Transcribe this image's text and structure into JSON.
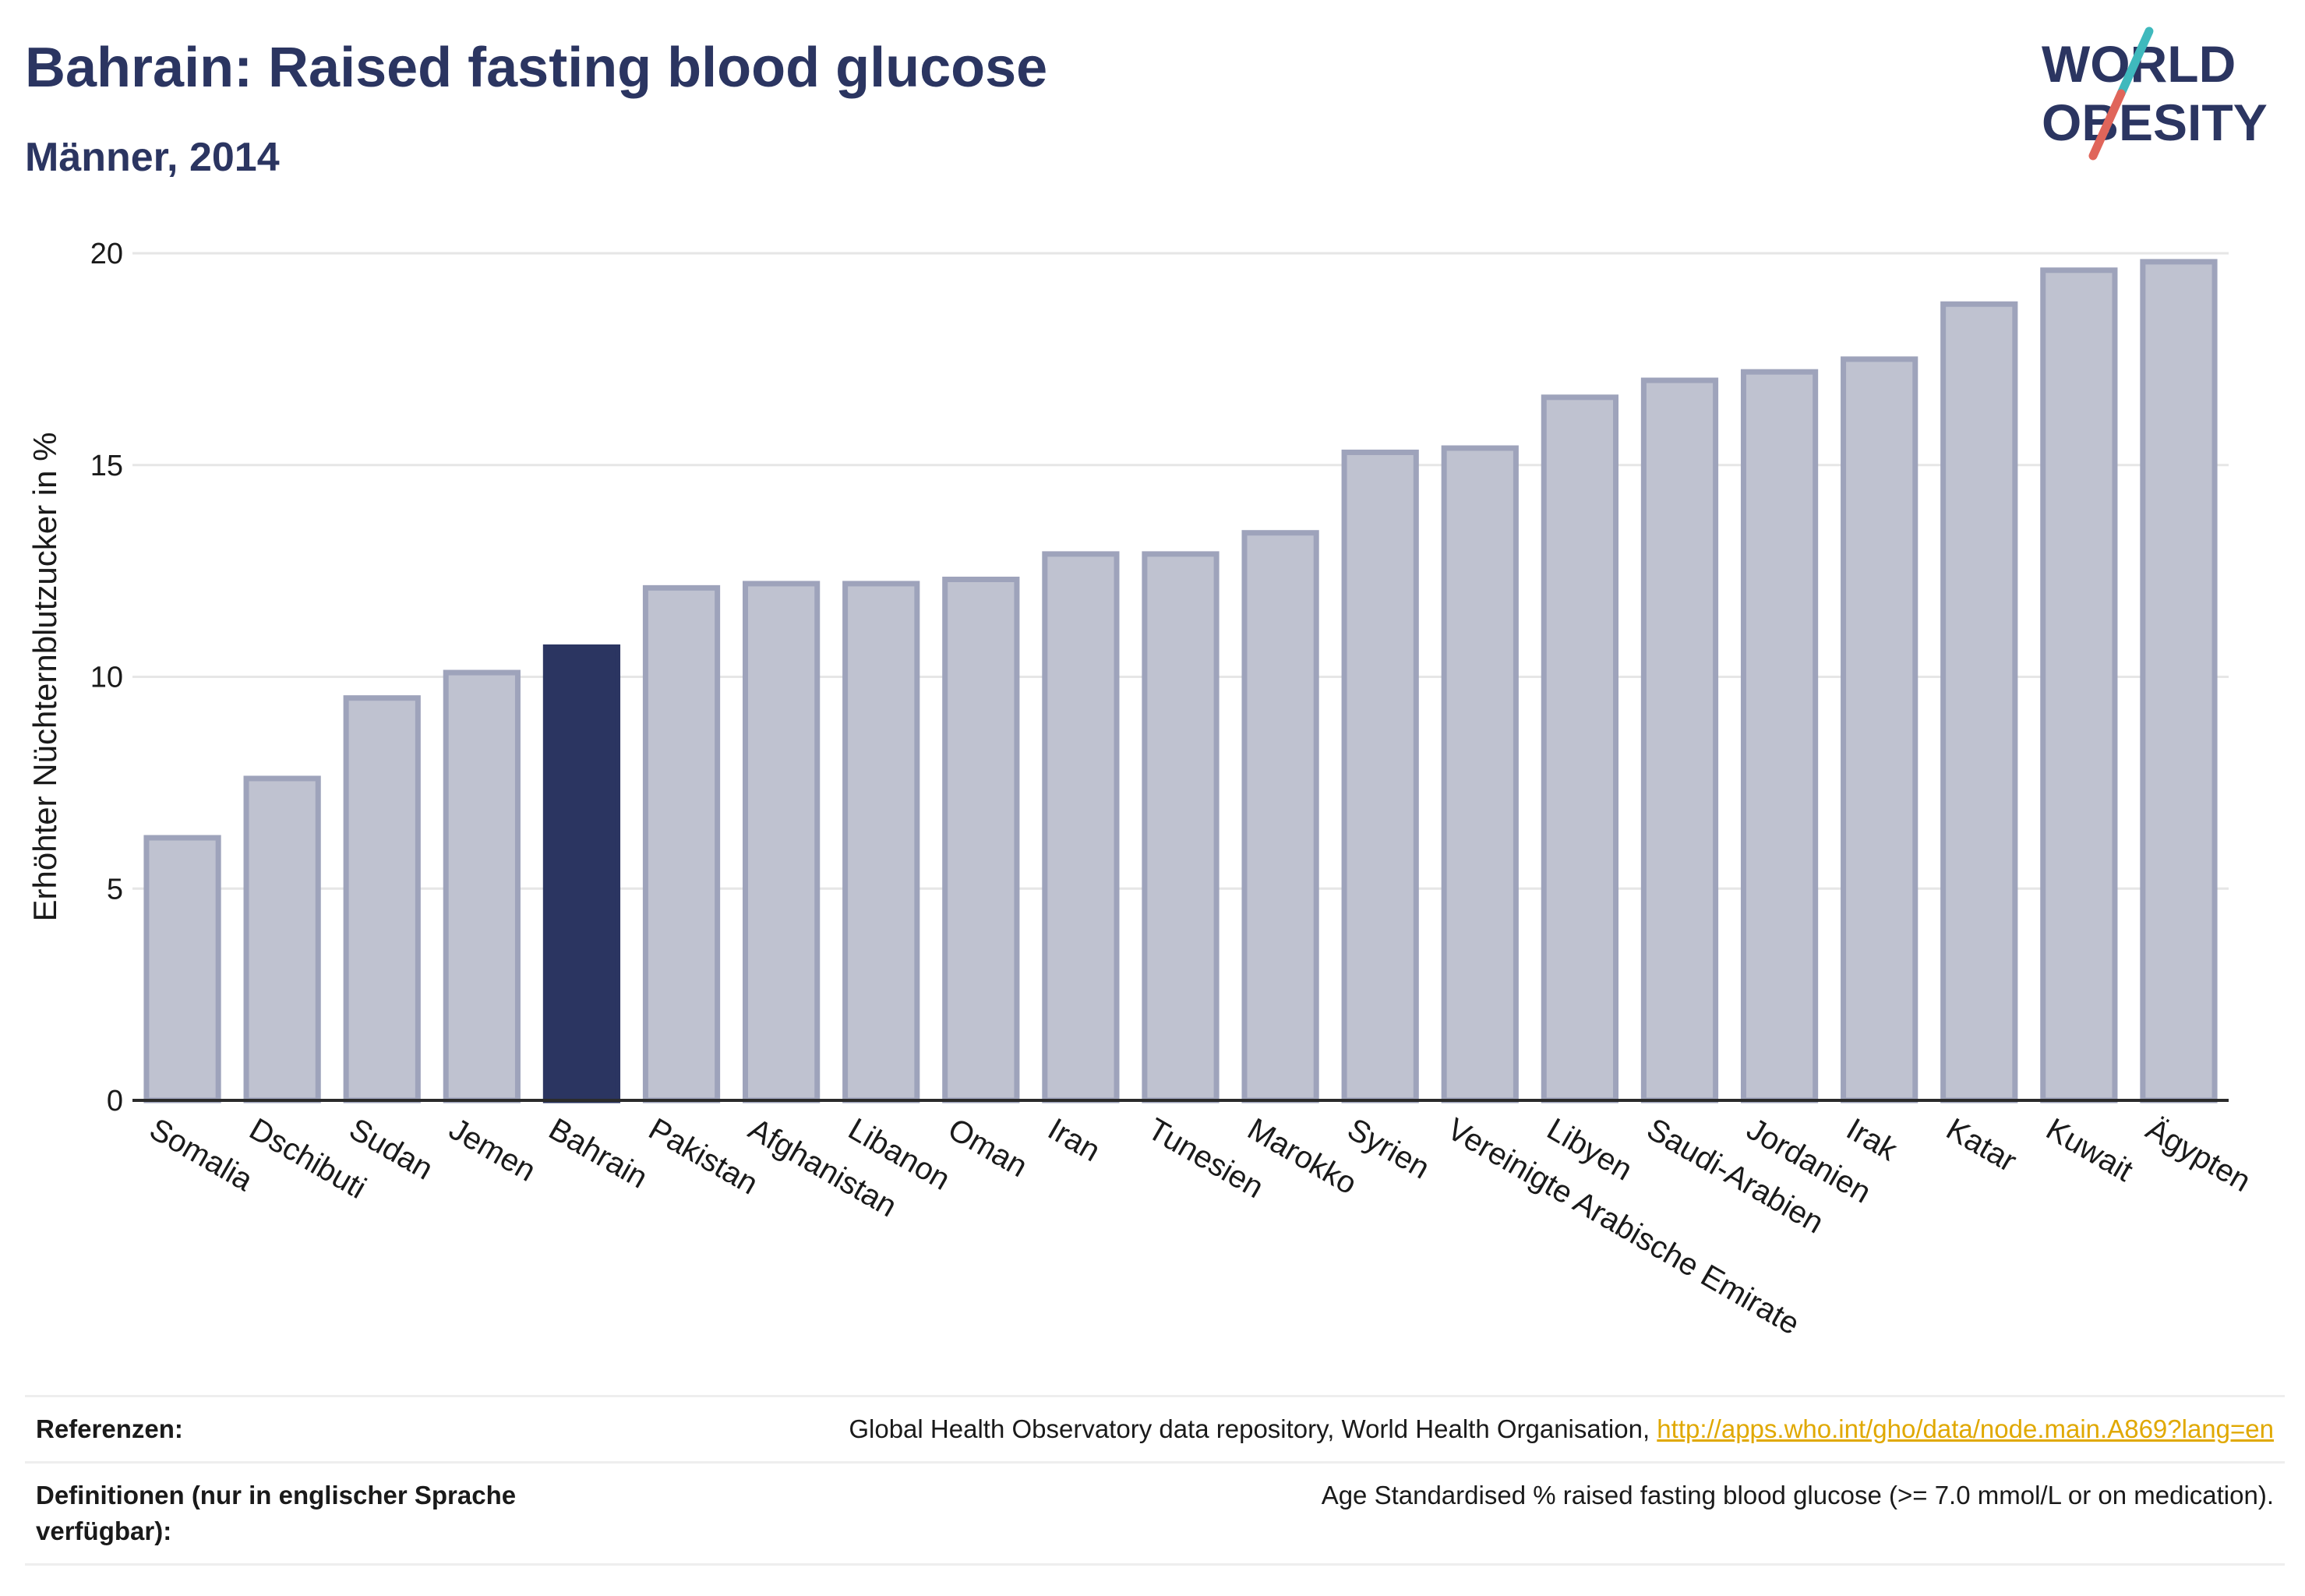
{
  "header": {
    "title": "Bahrain: Raised fasting blood glucose",
    "subtitle": "Männer, 2014"
  },
  "logo": {
    "line1": "WORLD",
    "line2": "OBESITY",
    "accent_teal": "#3fb9bd",
    "accent_red": "#e0655a"
  },
  "colors": {
    "highlight": "#2b3561",
    "bar_fill": "#bfc2d0",
    "bar_stroke": "#9ea3bb"
  },
  "chart_data": {
    "type": "bar",
    "ylabel": "Erhöhter Nüchternblutzucker in %",
    "ylim": [
      0,
      20
    ],
    "yticks": [
      0,
      5,
      10,
      15,
      20
    ],
    "grid": true,
    "highlight": "Bahrain",
    "categories": [
      "Somalia",
      "Dschibuti",
      "Sudan",
      "Jemen",
      "Bahrain",
      "Pakistan",
      "Afghanistan",
      "Libanon",
      "Oman",
      "Iran",
      "Tunesien",
      "Marokko",
      "Syrien",
      "Vereinigte Arabische Emirate",
      "Libyen",
      "Saudi-Arabien",
      "Jordanien",
      "Irak",
      "Katar",
      "Kuwait",
      "Ägypten"
    ],
    "values": [
      6.2,
      7.6,
      9.5,
      10.1,
      10.7,
      12.1,
      12.2,
      12.2,
      12.3,
      12.9,
      12.9,
      13.4,
      15.3,
      15.4,
      16.6,
      17.0,
      17.2,
      17.5,
      18.8,
      19.6,
      19.8
    ]
  },
  "references": {
    "ref_label": "Referenzen:",
    "ref_text": "Global Health Observatory data repository, World Health Organisation, ",
    "ref_link": "http://apps.who.int/gho/data/node.main.A869?lang=en",
    "def_label": "Definitionen (nur in englischer Sprache verfügbar):",
    "def_text": "Age Standardised % raised fasting blood glucose (>= 7.0 mmol/L or on medication)."
  }
}
